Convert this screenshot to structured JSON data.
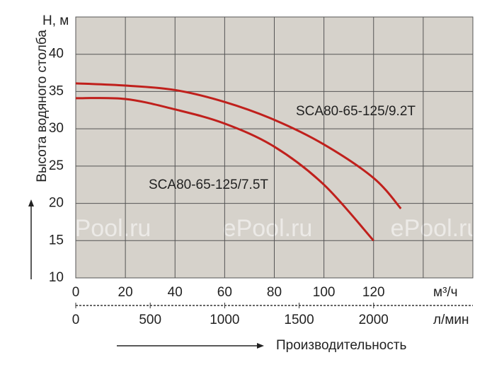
{
  "chart_data": {
    "type": "line",
    "y_label": "Высота водяного столба",
    "y_unit": "H, м",
    "x_label": "Производительность",
    "x_unit": "м³/ч",
    "x2_unit": "л/мин",
    "watermark": "ePool.ru",
    "xlim": [
      0,
      160
    ],
    "xticks": [
      0,
      20,
      40,
      60,
      80,
      100,
      120
    ],
    "x2lim": [
      0,
      2666.67
    ],
    "x2ticks": [
      0,
      500,
      1000,
      1500,
      2000
    ],
    "ylim": [
      10,
      45
    ],
    "yticks": [
      10,
      15,
      20,
      25,
      30,
      35,
      40
    ],
    "grid": true,
    "series": [
      {
        "name": "SCA80-65-125/9.2T",
        "color": "#c0201c",
        "x": [
          0,
          20,
          40,
          60,
          80,
          100,
          120,
          131
        ],
        "values": [
          36.1,
          35.8,
          35.2,
          33.6,
          31.2,
          27.9,
          23.4,
          19.3
        ]
      },
      {
        "name": "SCA80-65-125/7.5T",
        "color": "#c0201c",
        "x": [
          0,
          20,
          40,
          60,
          80,
          100,
          120
        ],
        "values": [
          34.1,
          34.0,
          32.6,
          30.7,
          27.6,
          22.5,
          15.0
        ]
      }
    ]
  }
}
